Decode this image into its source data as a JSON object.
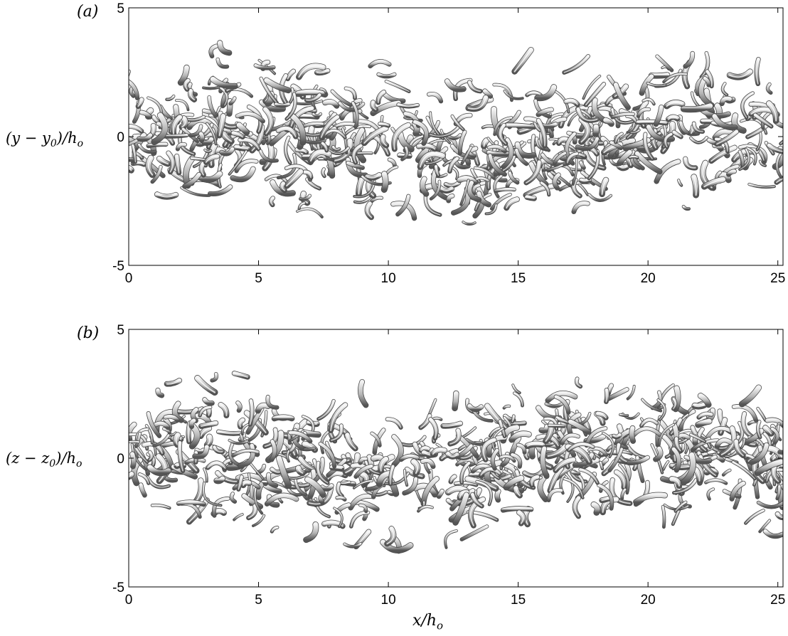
{
  "figure": {
    "panels": [
      {
        "tag": "(a)",
        "ylabel": {
          "pre": "(y − y",
          "sub1": "0",
          "mid": ")/h",
          "sub2": "o"
        },
        "xlim": [
          0,
          25.2
        ],
        "ylim": [
          -5,
          5
        ],
        "xticks": [
          "0",
          "5",
          "10",
          "15",
          "20",
          "25"
        ],
        "yticks": [
          "-5",
          "0",
          "5"
        ],
        "image_kind": "vortex isosurfaces"
      },
      {
        "tag": "(b)",
        "ylabel": {
          "pre": "(z − z",
          "sub1": "0",
          "mid": ")/h",
          "sub2": "o"
        },
        "xlim": [
          0,
          25.2
        ],
        "ylim": [
          -5,
          5
        ],
        "xticks": [
          "0",
          "5",
          "10",
          "15",
          "20",
          "25"
        ],
        "yticks": [
          "-5",
          "0",
          "5"
        ],
        "image_kind": "vortex isosurfaces"
      }
    ],
    "xlabel": {
      "pre": "x/h",
      "sub": "o"
    }
  },
  "chart_data": [
    {
      "type": "heatmap",
      "title": "",
      "xlabel": "",
      "ylabel": "(y − y0)/ho",
      "xlim": [
        0,
        25.2
      ],
      "ylim": [
        -5,
        5
      ],
      "xticks": [
        0,
        5,
        10,
        15,
        20,
        25
      ],
      "yticks": [
        -5,
        0,
        5
      ],
      "band": {
        "y_min": -4.1,
        "y_max": 3.8
      },
      "grid": false
    },
    {
      "type": "heatmap",
      "title": "",
      "xlabel": "x/ho",
      "ylabel": "(z − z0)/ho",
      "xlim": [
        0,
        25.2
      ],
      "ylim": [
        -5,
        5
      ],
      "xticks": [
        0,
        5,
        10,
        15,
        20,
        25
      ],
      "yticks": [
        -5,
        0,
        5
      ],
      "band": {
        "y_min": -3.7,
        "y_max": 3.5
      },
      "grid": false
    }
  ]
}
